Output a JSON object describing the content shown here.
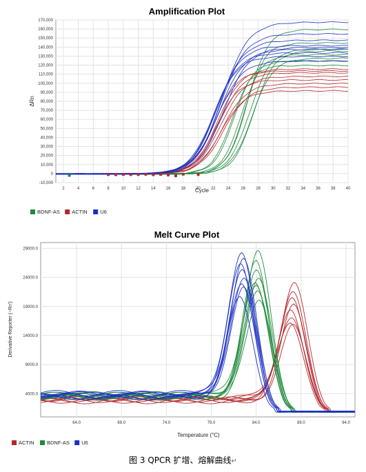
{
  "figure_caption": "图 3 QPCR 扩增、熔解曲线",
  "caption_mark": "↵",
  "chart_data": [
    {
      "type": "line",
      "title": "Amplification Plot",
      "xlabel": "Cycle",
      "ylabel": "ΔRn",
      "xlim": [
        1,
        40
      ],
      "ylim": [
        -10000,
        170000
      ],
      "xticks": [
        2,
        4,
        6,
        8,
        10,
        12,
        14,
        16,
        18,
        20,
        22,
        24,
        26,
        28,
        30,
        32,
        34,
        36,
        38,
        40
      ],
      "yticks": [
        -10000,
        0,
        10000,
        20000,
        30000,
        40000,
        50000,
        60000,
        70000,
        80000,
        90000,
        100000,
        110000,
        120000,
        130000,
        140000,
        150000,
        160000,
        170000
      ],
      "ytick_labels": [
        "-10,000",
        "0",
        "10,000",
        "20,000",
        "30,000",
        "40,000",
        "50,000",
        "60,000",
        "70,000",
        "80,000",
        "90,000",
        "100,000",
        "110,000",
        "120,000",
        "130,000",
        "140,000",
        "150,000",
        "160,000",
        "170,000"
      ],
      "grid": true,
      "legend_position": "bottom-left",
      "series": [
        {
          "name": "BDNF-AS",
          "color": "#1e8a3c",
          "curves": [
            {
              "plateau": 160000,
              "midpoint": 26.6,
              "slope": 1.35
            },
            {
              "plateau": 145000,
              "midpoint": 26.3,
              "slope": 1.3
            },
            {
              "plateau": 138000,
              "midpoint": 26.9,
              "slope": 1.4
            },
            {
              "plateau": 132000,
              "midpoint": 25.8,
              "slope": 1.3
            },
            {
              "plateau": 128000,
              "midpoint": 27.2,
              "slope": 1.4
            },
            {
              "plateau": 125000,
              "midpoint": 24.8,
              "slope": 1.3
            },
            {
              "plateau": 120000,
              "midpoint": 24.5,
              "slope": 1.3
            },
            {
              "plateau": 136000,
              "midpoint": 27.4,
              "slope": 1.35
            }
          ],
          "markers": [
            {
              "x": 2.8,
              "y": -2000
            }
          ]
        },
        {
          "name": "ACTIN",
          "color": "#b3272b",
          "curves": [
            {
              "plateau": 116000,
              "midpoint": 22.6,
              "slope": 1.55
            },
            {
              "plateau": 112000,
              "midpoint": 22.8,
              "slope": 1.55
            },
            {
              "plateau": 108000,
              "midpoint": 23.0,
              "slope": 1.6
            },
            {
              "plateau": 104000,
              "midpoint": 22.4,
              "slope": 1.5
            },
            {
              "plateau": 100000,
              "midpoint": 23.2,
              "slope": 1.6
            },
            {
              "plateau": 96000,
              "midpoint": 23.4,
              "slope": 1.6
            },
            {
              "plateau": 92000,
              "midpoint": 23.0,
              "slope": 1.55
            },
            {
              "plateau": 114000,
              "midpoint": 22.2,
              "slope": 1.5
            }
          ],
          "markers": [
            {
              "x": 8,
              "y": -1000
            },
            {
              "x": 9,
              "y": -1200
            },
            {
              "x": 10,
              "y": -900
            },
            {
              "x": 11,
              "y": -1100
            },
            {
              "x": 12,
              "y": -1000
            },
            {
              "x": 13,
              "y": -800
            },
            {
              "x": 14,
              "y": -1200
            },
            {
              "x": 15,
              "y": -900
            },
            {
              "x": 16,
              "y": -1500
            },
            {
              "x": 17,
              "y": -2500
            },
            {
              "x": 18,
              "y": -700
            },
            {
              "x": 20,
              "y": -1000
            }
          ]
        },
        {
          "name": "U6",
          "color": "#1b2fc4",
          "curves": [
            {
              "plateau": 168000,
              "midpoint": 23.2,
              "slope": 1.75
            },
            {
              "plateau": 155000,
              "midpoint": 23.0,
              "slope": 1.7
            },
            {
              "plateau": 148000,
              "midpoint": 22.6,
              "slope": 1.7
            },
            {
              "plateau": 142000,
              "midpoint": 22.4,
              "slope": 1.65
            },
            {
              "plateau": 138000,
              "midpoint": 22.8,
              "slope": 1.7
            },
            {
              "plateau": 134000,
              "midpoint": 22.2,
              "slope": 1.6
            },
            {
              "plateau": 130000,
              "midpoint": 22.0,
              "slope": 1.6
            },
            {
              "plateau": 125000,
              "midpoint": 22.5,
              "slope": 1.65
            },
            {
              "plateau": 140000,
              "midpoint": 23.4,
              "slope": 1.7
            }
          ],
          "markers": []
        }
      ]
    },
    {
      "type": "line",
      "title": "Melt Curve Plot",
      "xlabel": "Temperature (°C)",
      "ylabel": "Derivative Reporter (−Rn')",
      "xlim": [
        60,
        95
      ],
      "ylim": [
        0,
        30000
      ],
      "xticks": [
        64.0,
        69.0,
        74.0,
        79.0,
        84.0,
        89.0,
        94.0
      ],
      "xtick_labels": [
        "64.0",
        "69.0",
        "74.0",
        "79.0",
        "84.0",
        "89.0",
        "94.0"
      ],
      "yticks": [
        4000,
        9000,
        14000,
        19000,
        24000,
        29000
      ],
      "ytick_labels": [
        "4000.0",
        "9000.0",
        "14000.0",
        "19000.0",
        "24000.0",
        "29000.0"
      ],
      "grid": true,
      "legend_position": "bottom-left",
      "series": [
        {
          "name": "ACTIN",
          "color": "#b3272b",
          "curves": [
            {
              "peak_x": 88.3,
              "peak_y": 23500,
              "baseline": 3100
            },
            {
              "peak_x": 88.1,
              "peak_y": 22000,
              "baseline": 2900
            },
            {
              "peak_x": 88.0,
              "peak_y": 20500,
              "baseline": 3300
            },
            {
              "peak_x": 88.2,
              "peak_y": 19000,
              "baseline": 3000
            },
            {
              "peak_x": 87.9,
              "peak_y": 18200,
              "baseline": 2800
            },
            {
              "peak_x": 88.0,
              "peak_y": 17400,
              "baseline": 3200
            },
            {
              "peak_x": 87.8,
              "peak_y": 16600,
              "baseline": 3400
            },
            {
              "peak_x": 88.1,
              "peak_y": 15800,
              "baseline": 2700
            }
          ]
        },
        {
          "name": "BDNF-AS",
          "color": "#1e8a3c",
          "curves": [
            {
              "peak_x": 84.2,
              "peak_y": 28500,
              "baseline": 3700
            },
            {
              "peak_x": 84.0,
              "peak_y": 26500,
              "baseline": 3500
            },
            {
              "peak_x": 84.1,
              "peak_y": 25200,
              "baseline": 3800
            },
            {
              "peak_x": 84.3,
              "peak_y": 24300,
              "baseline": 3400
            },
            {
              "peak_x": 83.9,
              "peak_y": 23500,
              "baseline": 3900
            },
            {
              "peak_x": 84.0,
              "peak_y": 22500,
              "baseline": 3600
            },
            {
              "peak_x": 84.2,
              "peak_y": 21300,
              "baseline": 3300
            },
            {
              "peak_x": 84.4,
              "peak_y": 20200,
              "baseline": 3800
            }
          ]
        },
        {
          "name": "U6",
          "color": "#1b2fc4",
          "curves": [
            {
              "peak_x": 82.4,
              "peak_y": 28700,
              "baseline": 3900
            },
            {
              "peak_x": 82.6,
              "peak_y": 27200,
              "baseline": 3600
            },
            {
              "peak_x": 82.3,
              "peak_y": 26000,
              "baseline": 4100
            },
            {
              "peak_x": 82.5,
              "peak_y": 25200,
              "baseline": 3500
            },
            {
              "peak_x": 82.7,
              "peak_y": 24300,
              "baseline": 3800
            },
            {
              "peak_x": 82.4,
              "peak_y": 23300,
              "baseline": 4000
            },
            {
              "peak_x": 82.6,
              "peak_y": 22200,
              "baseline": 3700
            },
            {
              "peak_x": 82.2,
              "peak_y": 20300,
              "baseline": 3400
            }
          ]
        }
      ]
    }
  ]
}
